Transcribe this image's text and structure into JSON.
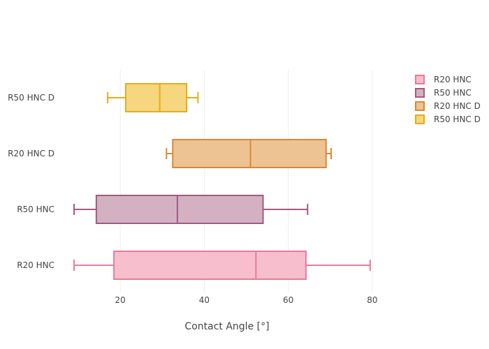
{
  "chart_data": {
    "type": "box",
    "orientation": "horizontal",
    "xlabel": "Contact Angle [°]",
    "xlim": [
      8,
      87
    ],
    "xticks": [
      20,
      40,
      60,
      80
    ],
    "grid": true,
    "legend_position": "top-right",
    "series": [
      {
        "name": "R20 HNC",
        "min": 9,
        "q1": 18.5,
        "median": 52.3,
        "q3": 64.2,
        "max": 79.5,
        "fill": "#f7bfcd",
        "line": "#e87a97"
      },
      {
        "name": "R50 HNC",
        "min": 9,
        "q1": 14.3,
        "median": 33.6,
        "q3": 54.0,
        "max": 64.6,
        "fill": "#d4b0c3",
        "line": "#a05a83"
      },
      {
        "name": "R20 HNC D",
        "min": 31,
        "q1": 32.5,
        "median": 51.0,
        "q3": 69.0,
        "max": 70.2,
        "fill": "#edc393",
        "line": "#d9892f"
      },
      {
        "name": "R50 HNC D",
        "min": 17,
        "q1": 21.3,
        "median": 29.4,
        "q3": 35.8,
        "max": 38.5,
        "fill": "#f6d67e",
        "line": "#e6ac1a"
      }
    ]
  }
}
